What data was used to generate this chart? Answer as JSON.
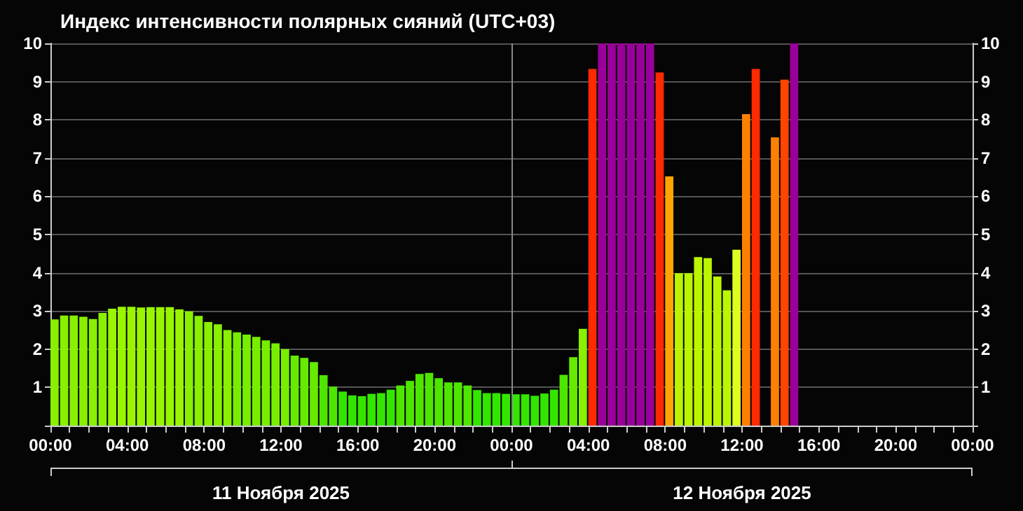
{
  "chart_data": {
    "type": "bar",
    "title": "Индекс интенсивности полярных сияний (UTC+03)",
    "x": [
      "2025-11-11T00:00",
      "2025-11-11T00:30",
      "2025-11-11T01:00",
      "2025-11-11T01:30",
      "2025-11-11T02:00",
      "2025-11-11T02:30",
      "2025-11-11T03:00",
      "2025-11-11T03:30",
      "2025-11-11T04:00",
      "2025-11-11T04:30",
      "2025-11-11T05:00",
      "2025-11-11T05:30",
      "2025-11-11T06:00",
      "2025-11-11T06:30",
      "2025-11-11T07:00",
      "2025-11-11T07:30",
      "2025-11-11T08:00",
      "2025-11-11T08:30",
      "2025-11-11T09:00",
      "2025-11-11T09:30",
      "2025-11-11T10:00",
      "2025-11-11T10:30",
      "2025-11-11T11:00",
      "2025-11-11T11:30",
      "2025-11-11T12:00",
      "2025-11-11T12:30",
      "2025-11-11T13:00",
      "2025-11-11T13:30",
      "2025-11-11T14:00",
      "2025-11-11T14:30",
      "2025-11-11T15:00",
      "2025-11-11T15:30",
      "2025-11-11T16:00",
      "2025-11-11T16:30",
      "2025-11-11T17:00",
      "2025-11-11T17:30",
      "2025-11-11T18:00",
      "2025-11-11T18:30",
      "2025-11-11T19:00",
      "2025-11-11T19:30",
      "2025-11-11T20:00",
      "2025-11-11T20:30",
      "2025-11-11T21:00",
      "2025-11-11T21:30",
      "2025-11-11T22:00",
      "2025-11-11T22:30",
      "2025-11-11T23:00",
      "2025-11-11T23:30",
      "2025-11-12T00:00",
      "2025-11-12T00:30",
      "2025-11-12T01:00",
      "2025-11-12T01:30",
      "2025-11-12T02:00",
      "2025-11-12T02:30",
      "2025-11-12T03:00",
      "2025-11-12T03:30",
      "2025-11-12T04:00",
      "2025-11-12T04:30",
      "2025-11-12T05:00",
      "2025-11-12T05:30",
      "2025-11-12T06:00",
      "2025-11-12T06:30",
      "2025-11-12T07:00",
      "2025-11-12T07:30",
      "2025-11-12T08:00",
      "2025-11-12T08:30",
      "2025-11-12T09:00",
      "2025-11-12T09:30",
      "2025-11-12T10:00",
      "2025-11-12T10:30",
      "2025-11-12T11:00",
      "2025-11-12T11:30",
      "2025-11-12T12:00",
      "2025-11-12T12:30",
      "2025-11-12T13:00",
      "2025-11-12T13:30",
      "2025-11-12T14:00",
      "2025-11-12T14:30"
    ],
    "values": [
      2.78,
      2.88,
      2.88,
      2.85,
      2.79,
      2.95,
      3.06,
      3.11,
      3.11,
      3.09,
      3.1,
      3.1,
      3.1,
      3.04,
      2.99,
      2.87,
      2.71,
      2.65,
      2.5,
      2.44,
      2.38,
      2.32,
      2.23,
      2.15,
      2.0,
      1.83,
      1.77,
      1.66,
      1.32,
      1.02,
      0.89,
      0.79,
      0.77,
      0.83,
      0.85,
      0.94,
      1.05,
      1.17,
      1.35,
      1.38,
      1.24,
      1.13,
      1.13,
      1.05,
      0.93,
      0.85,
      0.85,
      0.83,
      0.82,
      0.82,
      0.78,
      0.84,
      0.94,
      1.33,
      1.79,
      2.53,
      9.33,
      10,
      10,
      10,
      10,
      10,
      10,
      9.24,
      6.52,
      3.99,
      3.99,
      4.41,
      4.38,
      3.9,
      3.54,
      4.6,
      8.15,
      9.33,
      null,
      7.54,
      9.05,
      10
    ],
    "colors": [
      "#88f000",
      "#88f000",
      "#88f000",
      "#88f000",
      "#88f000",
      "#88f000",
      "#99f500",
      "#99f500",
      "#99f500",
      "#99f500",
      "#99f500",
      "#99f500",
      "#99f500",
      "#99f500",
      "#88f000",
      "#88f000",
      "#88f000",
      "#88f000",
      "#88f000",
      "#77ee00",
      "#77ee00",
      "#77ee00",
      "#77ee00",
      "#77ee00",
      "#77ee00",
      "#66ea00",
      "#66ea00",
      "#66ea00",
      "#4ee600",
      "#4ee600",
      "#33e600",
      "#33e600",
      "#33e600",
      "#33e600",
      "#33e600",
      "#33e600",
      "#4ee600",
      "#4ee600",
      "#4ee600",
      "#4ee600",
      "#4ee600",
      "#4ee600",
      "#4ee600",
      "#4ee600",
      "#33e600",
      "#33e600",
      "#33e600",
      "#33e600",
      "#33e600",
      "#33e600",
      "#33e600",
      "#33e600",
      "#33e600",
      "#4ee600",
      "#66ea00",
      "#88f000",
      "#ff2a00",
      "#990099",
      "#990099",
      "#990099",
      "#990099",
      "#990099",
      "#990099",
      "#ff2a00",
      "#ffa500",
      "#bbf500",
      "#bbf500",
      "#bbf500",
      "#bbf500",
      "#bbf500",
      "#bbf500",
      "#ddff22",
      "#ff8000",
      "#ff2a00",
      null,
      "#ff8000",
      "#ff4500",
      "#990099"
    ],
    "xlim": [
      "2025-11-11T00:00",
      "2025-11-13T00:00"
    ],
    "xticks": [
      {
        "value": "2025-11-11T00:00",
        "label": "00:00"
      },
      {
        "value": "2025-11-11T01:00",
        "label": null
      },
      {
        "value": "2025-11-11T02:00",
        "label": null
      },
      {
        "value": "2025-11-11T03:00",
        "label": null
      },
      {
        "value": "2025-11-11T04:00",
        "label": "04:00"
      },
      {
        "value": "2025-11-11T05:00",
        "label": null
      },
      {
        "value": "2025-11-11T06:00",
        "label": null
      },
      {
        "value": "2025-11-11T07:00",
        "label": null
      },
      {
        "value": "2025-11-11T08:00",
        "label": "08:00"
      },
      {
        "value": "2025-11-11T09:00",
        "label": null
      },
      {
        "value": "2025-11-11T10:00",
        "label": null
      },
      {
        "value": "2025-11-11T11:00",
        "label": null
      },
      {
        "value": "2025-11-11T12:00",
        "label": "12:00"
      },
      {
        "value": "2025-11-11T13:00",
        "label": null
      },
      {
        "value": "2025-11-11T14:00",
        "label": null
      },
      {
        "value": "2025-11-11T15:00",
        "label": null
      },
      {
        "value": "2025-11-11T16:00",
        "label": "16:00"
      },
      {
        "value": "2025-11-11T17:00",
        "label": null
      },
      {
        "value": "2025-11-11T18:00",
        "label": null
      },
      {
        "value": "2025-11-11T19:00",
        "label": null
      },
      {
        "value": "2025-11-11T20:00",
        "label": "20:00"
      },
      {
        "value": "2025-11-11T21:00",
        "label": null
      },
      {
        "value": "2025-11-11T22:00",
        "label": null
      },
      {
        "value": "2025-11-11T23:00",
        "label": null
      },
      {
        "value": "2025-11-12T00:00",
        "label": "00:00"
      },
      {
        "value": "2025-11-12T01:00",
        "label": null
      },
      {
        "value": "2025-11-12T02:00",
        "label": null
      },
      {
        "value": "2025-11-12T03:00",
        "label": null
      },
      {
        "value": "2025-11-12T04:00",
        "label": "04:00"
      },
      {
        "value": "2025-11-12T05:00",
        "label": null
      },
      {
        "value": "2025-11-12T06:00",
        "label": null
      },
      {
        "value": "2025-11-12T07:00",
        "label": null
      },
      {
        "value": "2025-11-12T08:00",
        "label": "08:00"
      },
      {
        "value": "2025-11-12T09:00",
        "label": null
      },
      {
        "value": "2025-11-12T10:00",
        "label": null
      },
      {
        "value": "2025-11-12T11:00",
        "label": null
      },
      {
        "value": "2025-11-12T12:00",
        "label": "12:00"
      },
      {
        "value": "2025-11-12T13:00",
        "label": null
      },
      {
        "value": "2025-11-12T14:00",
        "label": null
      },
      {
        "value": "2025-11-12T15:00",
        "label": null
      },
      {
        "value": "2025-11-12T16:00",
        "label": "16:00"
      },
      {
        "value": "2025-11-12T17:00",
        "label": null
      },
      {
        "value": "2025-11-12T18:00",
        "label": null
      },
      {
        "value": "2025-11-12T19:00",
        "label": null
      },
      {
        "value": "2025-11-12T20:00",
        "label": "20:00"
      },
      {
        "value": "2025-11-12T21:00",
        "label": null
      },
      {
        "value": "2025-11-12T22:00",
        "label": null
      },
      {
        "value": "2025-11-12T23:00",
        "label": null
      },
      {
        "value": "2025-11-13T00:00",
        "label": "00:00"
      }
    ],
    "ylim": [
      0,
      10
    ],
    "yticks": [
      1,
      2,
      3,
      4,
      5,
      6,
      7,
      8,
      9,
      10
    ],
    "y2lim": [
      0,
      10
    ],
    "y2ticks": [
      1,
      2,
      3,
      4,
      5,
      6,
      7,
      8,
      9,
      10
    ],
    "grid": "y",
    "ref_lines": [
      {
        "axis": "x",
        "value": "2025-11-12T00:00",
        "color": "#888888"
      }
    ],
    "annotations": [
      "11 Ноября 2025",
      "12 Ноября 2025"
    ]
  }
}
